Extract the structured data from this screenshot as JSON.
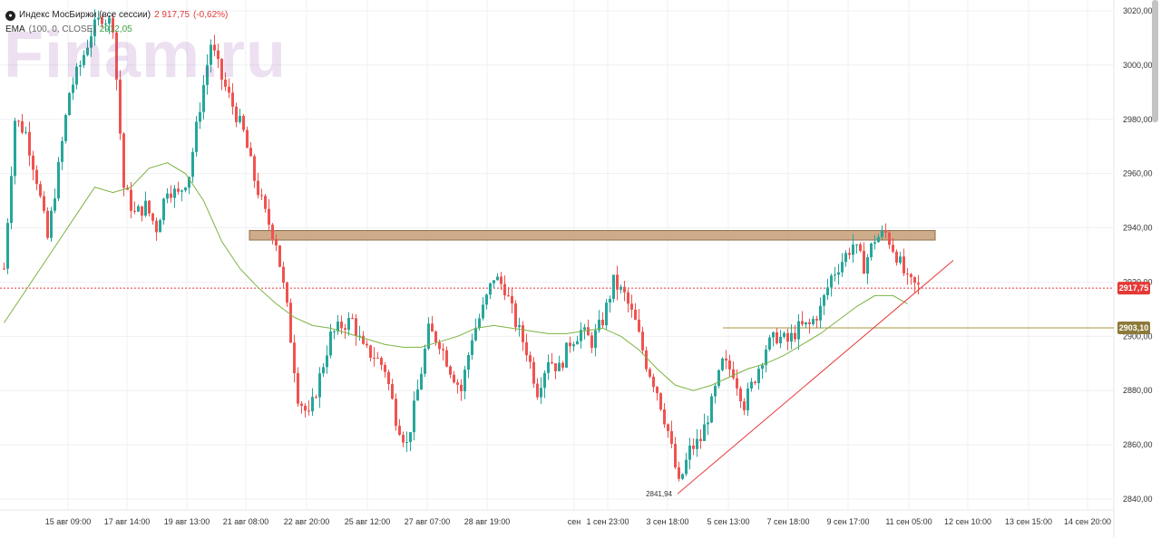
{
  "instrument": {
    "name": "Индекс МосБиржи (все сессии)",
    "last": "2 917,75",
    "change": "(-0,62%)"
  },
  "indicator": {
    "name": "EMA",
    "params": "(100, 0, CLOSE)",
    "value": "2912,05"
  },
  "watermark": "Finam.ru",
  "colors": {
    "up": "#26a69a",
    "down": "#ef5350",
    "ema": "#7cb342",
    "resistance_zone": "#c9a27c",
    "trendline": "#e53935",
    "price_line": "#e53935",
    "support_label": "#8d7a3a"
  },
  "chart_data": {
    "type": "candlestick",
    "ylim": [
      2836,
      3024
    ],
    "y_ticks": [
      "3020,00",
      "3000,00",
      "2980,00",
      "2960,00",
      "2940,00",
      "2920,00",
      "2900,00",
      "2880,00",
      "2860,00",
      "2840,00"
    ],
    "y_tick_values": [
      3020,
      3000,
      2980,
      2960,
      2940,
      2920,
      2900,
      2880,
      2860,
      2840
    ],
    "x_ticks": [
      "15 авг 09:00",
      "17 авг 14:00",
      "19 авг 13:00",
      "21 авг 08:00",
      "22 авг 20:00",
      "25 авг 12:00",
      "27 авг 07:00",
      "28 авг 19:00",
      "сен",
      "1 сен 23:00",
      "3 сен 18:00",
      "5 сен 13:00",
      "7 сен 18:00",
      "9 сен 17:00",
      "11 сен 05:00",
      "12 сен 10:00",
      "13 сен 15:00",
      "14 сен 20:00"
    ],
    "close_path": [
      [
        0,
        2925
      ],
      [
        3,
        2980
      ],
      [
        6,
        2975
      ],
      [
        9,
        2958
      ],
      [
        12,
        2936
      ],
      [
        15,
        2962
      ],
      [
        18,
        2990
      ],
      [
        21,
        3000
      ],
      [
        24,
        3012
      ],
      [
        27,
        3018
      ],
      [
        30,
        3015
      ],
      [
        33,
        2955
      ],
      [
        36,
        2945
      ],
      [
        39,
        2948
      ],
      [
        42,
        2940
      ],
      [
        45,
        2955
      ],
      [
        48,
        2952
      ],
      [
        51,
        2960
      ],
      [
        54,
        2985
      ],
      [
        57,
        3008
      ],
      [
        60,
        2995
      ],
      [
        63,
        2985
      ],
      [
        66,
        2975
      ],
      [
        69,
        2958
      ],
      [
        72,
        2945
      ],
      [
        75,
        2935
      ],
      [
        78,
        2910
      ],
      [
        81,
        2878
      ],
      [
        84,
        2870
      ],
      [
        87,
        2885
      ],
      [
        90,
        2900
      ],
      [
        93,
        2904
      ],
      [
        96,
        2906
      ],
      [
        99,
        2895
      ],
      [
        102,
        2893
      ],
      [
        105,
        2888
      ],
      [
        108,
        2870
      ],
      [
        111,
        2860
      ],
      [
        114,
        2880
      ],
      [
        117,
        2902
      ],
      [
        120,
        2898
      ],
      [
        123,
        2888
      ],
      [
        126,
        2880
      ],
      [
        129,
        2900
      ],
      [
        132,
        2910
      ],
      [
        135,
        2922
      ],
      [
        138,
        2918
      ],
      [
        141,
        2905
      ],
      [
        144,
        2895
      ],
      [
        147,
        2880
      ],
      [
        150,
        2892
      ],
      [
        153,
        2888
      ],
      [
        156,
        2898
      ],
      [
        159,
        2902
      ],
      [
        162,
        2898
      ],
      [
        165,
        2906
      ],
      [
        168,
        2920
      ],
      [
        171,
        2915
      ],
      [
        174,
        2905
      ],
      [
        177,
        2890
      ],
      [
        180,
        2880
      ],
      [
        183,
        2865
      ],
      [
        186,
        2845
      ],
      [
        189,
        2858
      ],
      [
        192,
        2862
      ],
      [
        195,
        2875
      ],
      [
        198,
        2890
      ],
      [
        201,
        2887
      ],
      [
        204,
        2875
      ],
      [
        207,
        2885
      ],
      [
        210,
        2896
      ],
      [
        213,
        2900
      ],
      [
        216,
        2898
      ],
      [
        219,
        2903
      ],
      [
        222,
        2904
      ],
      [
        225,
        2910
      ],
      [
        228,
        2922
      ],
      [
        231,
        2928
      ],
      [
        234,
        2934
      ],
      [
        237,
        2926
      ],
      [
        240,
        2936
      ],
      [
        243,
        2938
      ],
      [
        246,
        2930
      ],
      [
        249,
        2920
      ],
      [
        252,
        2918
      ]
    ],
    "ema_path": [
      [
        0,
        2905
      ],
      [
        10,
        2925
      ],
      [
        20,
        2945
      ],
      [
        25,
        2955
      ],
      [
        30,
        2953
      ],
      [
        35,
        2955
      ],
      [
        40,
        2962
      ],
      [
        45,
        2964
      ],
      [
        50,
        2960
      ],
      [
        55,
        2950
      ],
      [
        60,
        2935
      ],
      [
        65,
        2925
      ],
      [
        70,
        2918
      ],
      [
        75,
        2912
      ],
      [
        80,
        2907
      ],
      [
        85,
        2904
      ],
      [
        90,
        2903
      ],
      [
        95,
        2901
      ],
      [
        100,
        2899
      ],
      [
        105,
        2897
      ],
      [
        110,
        2896
      ],
      [
        115,
        2896
      ],
      [
        120,
        2898
      ],
      [
        125,
        2900
      ],
      [
        130,
        2903
      ],
      [
        135,
        2904
      ],
      [
        140,
        2903
      ],
      [
        145,
        2902
      ],
      [
        150,
        2901
      ],
      [
        155,
        2901
      ],
      [
        160,
        2902
      ],
      [
        165,
        2903
      ],
      [
        170,
        2900
      ],
      [
        175,
        2895
      ],
      [
        180,
        2888
      ],
      [
        185,
        2882
      ],
      [
        190,
        2880
      ],
      [
        195,
        2882
      ],
      [
        200,
        2885
      ],
      [
        205,
        2888
      ],
      [
        210,
        2890
      ],
      [
        215,
        2893
      ],
      [
        220,
        2897
      ],
      [
        225,
        2901
      ],
      [
        230,
        2906
      ],
      [
        235,
        2911
      ],
      [
        240,
        2915
      ],
      [
        245,
        2915
      ],
      [
        249,
        2912
      ]
    ],
    "series": [
      {
        "name": "EMA",
        "ema_last": 2912.05
      }
    ],
    "annotations": {
      "resistance_zone": [
        2935.5,
        2939
      ],
      "current_price": 2917.75,
      "current_price_label": "2917,75",
      "support_level": 2903.1,
      "support_label": "2903,10",
      "low_label": "2841,94",
      "low_value": 2841.94,
      "trendline": [
        [
          186,
          2841.94
        ],
        [
          262,
          2928
        ]
      ]
    }
  }
}
